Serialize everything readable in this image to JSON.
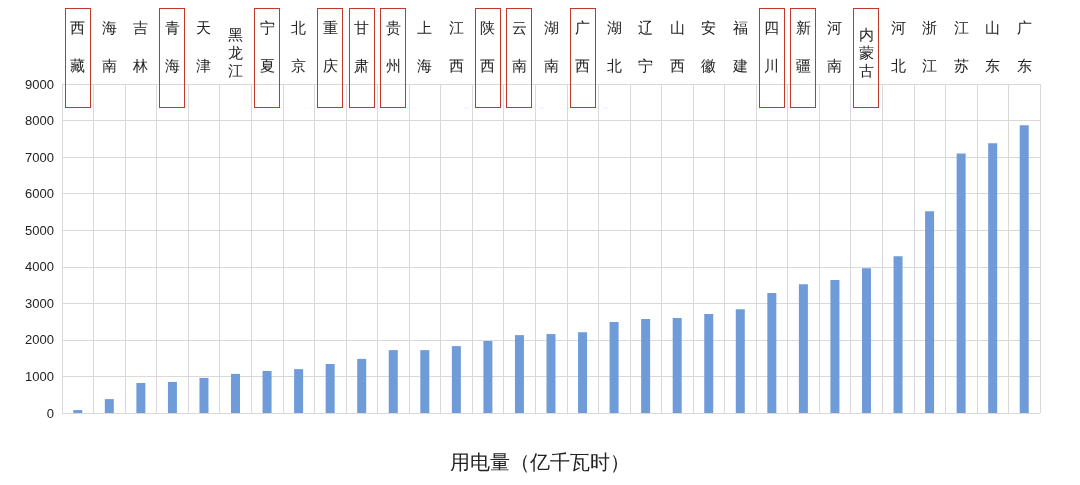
{
  "chart_data": {
    "type": "bar",
    "xlabel": "用电量（亿千瓦时）",
    "categories": [
      "西藏",
      "海南",
      "吉林",
      "青海",
      "天津",
      "黑龙江",
      "宁夏",
      "北京",
      "重庆",
      "甘肃",
      "贵州",
      "上海",
      "江西",
      "陕西",
      "云南",
      "湖南",
      "广西",
      "湖北",
      "辽宁",
      "山西",
      "安徽",
      "福建",
      "四川",
      "新疆",
      "河南",
      "内蒙古",
      "河北",
      "浙江",
      "江苏",
      "山东",
      "广东"
    ],
    "values": [
      80,
      380,
      820,
      850,
      960,
      1070,
      1150,
      1200,
      1340,
      1480,
      1720,
      1720,
      1830,
      1970,
      2130,
      2160,
      2210,
      2490,
      2570,
      2600,
      2710,
      2840,
      3280,
      3520,
      3640,
      3960,
      4290,
      5520,
      7100,
      7380,
      7870
    ],
    "color": "#6f9bd8",
    "ylim": [
      0,
      9000
    ],
    "yticks": [
      0,
      1000,
      2000,
      3000,
      4000,
      5000,
      6000,
      7000,
      8000,
      9000
    ],
    "grid": true
  }
}
